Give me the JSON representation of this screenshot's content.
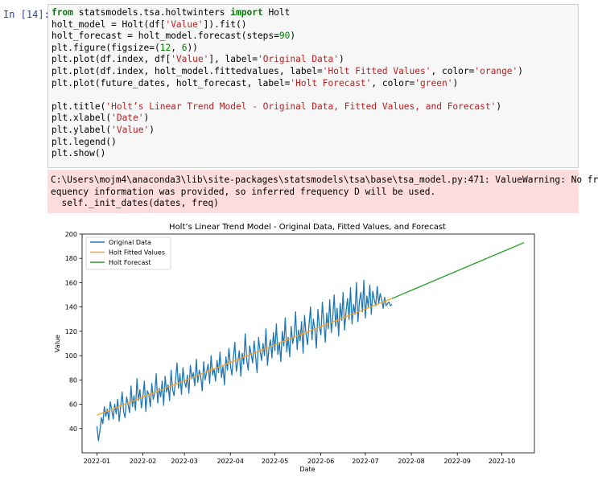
{
  "cell": {
    "prompt": "In [14]:",
    "code_lines": [
      [
        {
          "t": "from",
          "c": "kw"
        },
        {
          "t": " statsmodels.tsa.holtwinters "
        },
        {
          "t": "import",
          "c": "kw"
        },
        {
          "t": " Holt"
        }
      ],
      [
        {
          "t": "holt_model = Holt(df["
        },
        {
          "t": "'Value'",
          "c": "str"
        },
        {
          "t": "]).fit()"
        }
      ],
      [
        {
          "t": "holt_forecast = holt_model.forecast(steps="
        },
        {
          "t": "90",
          "c": "num"
        },
        {
          "t": ")"
        }
      ],
      [
        {
          "t": "plt.figure(figsize=("
        },
        {
          "t": "12",
          "c": "num"
        },
        {
          "t": ", "
        },
        {
          "t": "6",
          "c": "num"
        },
        {
          "t": "))"
        }
      ],
      [
        {
          "t": "plt.plot(df.index, df["
        },
        {
          "t": "'Value'",
          "c": "str"
        },
        {
          "t": "], label="
        },
        {
          "t": "'Original Data'",
          "c": "str"
        },
        {
          "t": ")"
        }
      ],
      [
        {
          "t": "plt.plot(df.index, holt_model.fittedvalues, label="
        },
        {
          "t": "'Holt Fitted Values'",
          "c": "str"
        },
        {
          "t": ", color="
        },
        {
          "t": "'orange'",
          "c": "str"
        },
        {
          "t": ")"
        }
      ],
      [
        {
          "t": "plt.plot(future_dates, holt_forecast, label="
        },
        {
          "t": "'Holt Forecast'",
          "c": "str"
        },
        {
          "t": ", color="
        },
        {
          "t": "'green'",
          "c": "str"
        },
        {
          "t": ")"
        }
      ],
      [],
      [
        {
          "t": "plt.title("
        },
        {
          "t": "'Holt’s Linear Trend Model - Original Data, Fitted Values, and Forecast'",
          "c": "str"
        },
        {
          "t": ")"
        }
      ],
      [
        {
          "t": "plt.xlabel("
        },
        {
          "t": "'Date'",
          "c": "str"
        },
        {
          "t": ")"
        }
      ],
      [
        {
          "t": "plt.ylabel("
        },
        {
          "t": "'Value'",
          "c": "str"
        },
        {
          "t": ")"
        }
      ],
      [
        {
          "t": "plt.legend()"
        }
      ],
      [
        {
          "t": "plt.show()"
        }
      ]
    ]
  },
  "stderr": {
    "lines": [
      "C:\\Users\\mojm4\\anaconda3\\lib\\site-packages\\statsmodels\\tsa\\base\\tsa_model.py:471: ValueWarning: No fr",
      "equency information was provided, so inferred frequency D will be used.",
      "  self._init_dates(dates, freq)"
    ]
  },
  "chart_data": {
    "type": "line",
    "title": "Holt’s Linear Trend Model - Original Data, Fitted Values, and Forecast",
    "xlabel": "Date",
    "ylabel": "Value",
    "x_range": [
      "2021-12-22",
      "2022-10-23"
    ],
    "ylim": [
      20,
      200
    ],
    "x_ticks": [
      "2022-01-01",
      "2022-02-01",
      "2022-03-01",
      "2022-04-01",
      "2022-05-01",
      "2022-06-01",
      "2022-07-01",
      "2022-08-01",
      "2022-09-01",
      "2022-10-01"
    ],
    "x_tick_labels": [
      "2022-01",
      "2022-02",
      "2022-03",
      "2022-04",
      "2022-05",
      "2022-06",
      "2022-07",
      "2022-08",
      "2022-09",
      "2022-10"
    ],
    "y_ticks": [
      40,
      60,
      80,
      100,
      120,
      140,
      160,
      180,
      200
    ],
    "grid": false,
    "legend": "top-left",
    "series": [
      {
        "name": "Original Data",
        "color": "#1f77b4",
        "style": "noisy-series",
        "start": "2022-01-01",
        "end": "2022-07-19",
        "values": [
          42,
          30,
          38,
          49,
          44,
          58,
          50,
          56,
          47,
          62,
          55,
          48,
          60,
          52,
          64,
          46,
          58,
          70,
          54,
          49,
          66,
          60,
          53,
          75,
          58,
          67,
          55,
          81,
          63,
          72,
          57,
          66,
          79,
          54,
          71,
          68,
          58,
          77,
          64,
          69,
          85,
          61,
          73,
          66,
          79,
          59,
          83,
          70,
          76,
          63,
          88,
          72,
          67,
          80,
          94,
          73,
          85,
          68,
          90,
          79,
          74,
          84,
          69,
          92,
          81,
          86,
          75,
          97,
          78,
          88,
          83,
          71,
          95,
          80,
          87,
          93,
          77,
          100,
          84,
          89,
          79,
          96,
          86,
          103,
          82,
          91,
          76,
          99,
          88,
          106,
          92,
          84,
          98,
          111,
          87,
          95,
          104,
          83,
          102,
          93,
          118,
          97,
          88,
          108,
          101,
          94,
          112,
          99,
          86,
          115,
          104,
          96,
          110,
          100,
          122,
          92,
          106,
          113,
          98,
          119,
          104,
          126,
          101,
          111,
          95,
          120,
          108,
          131,
          103,
          115,
          99,
          124,
          110,
          117,
          136,
          105,
          121,
          112,
          128,
          102,
          133,
          118,
          109,
          125,
          140,
          113,
          130,
          121,
          106,
          138,
          124,
          117,
          144,
          128,
          111,
          135,
          122,
          146,
          119,
          131,
          150,
          124,
          139,
          116,
          143,
          129,
          152,
          121,
          137,
          147,
          130,
          156,
          126,
          142,
          134,
          160,
          128,
          145,
          152,
          136,
          162,
          131,
          149,
          140,
          158,
          134,
          153,
          146,
          141,
          157,
          143,
          151,
          146,
          139,
          148,
          141,
          143,
          144,
          141,
          142
        ]
      },
      {
        "name": "Holt Fitted Values",
        "color": "#ff9f1c",
        "style": "linear",
        "points": [
          [
            "2022-01-01",
            51
          ],
          [
            "2022-07-19",
            147
          ]
        ]
      },
      {
        "name": "Holt Forecast",
        "color": "#2ca02c",
        "style": "linear",
        "points": [
          [
            "2022-07-19",
            147
          ],
          [
            "2022-10-16",
            193
          ]
        ]
      }
    ]
  }
}
